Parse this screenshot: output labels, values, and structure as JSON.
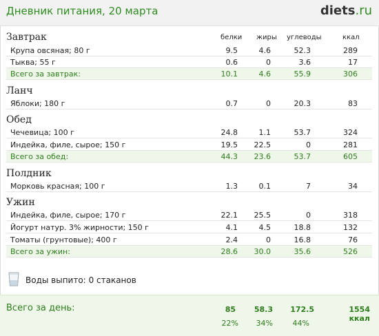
{
  "header": {
    "title": "Дневник питания, 20 марта",
    "logo_main": "diets",
    "logo_tld": ".ru"
  },
  "columns": {
    "protein": "белки",
    "fat": "жиры",
    "carbs": "углеводы",
    "kcal": "ккал"
  },
  "meals": {
    "breakfast": {
      "title": "Завтрак",
      "items": [
        {
          "name": "Крупа овсяная; 80 г",
          "protein": "9.5",
          "fat": "4.6",
          "carbs": "52.3",
          "kcal": "289"
        },
        {
          "name": "Тыква; 55 г",
          "protein": "0.6",
          "fat": "0",
          "carbs": "3.6",
          "kcal": "17"
        }
      ],
      "total": {
        "name": "Всего за завтрак:",
        "protein": "10.1",
        "fat": "4.6",
        "carbs": "55.9",
        "kcal": "306"
      }
    },
    "lunch": {
      "title": "Ланч",
      "items": [
        {
          "name": "Яблоки; 180 г",
          "protein": "0.7",
          "fat": "0",
          "carbs": "20.3",
          "kcal": "83"
        }
      ]
    },
    "dinner": {
      "title": "Обед",
      "items": [
        {
          "name": "Чечевица; 100 г",
          "protein": "24.8",
          "fat": "1.1",
          "carbs": "53.7",
          "kcal": "324"
        },
        {
          "name": "Индейка, филе, сырое; 150 г",
          "protein": "19.5",
          "fat": "22.5",
          "carbs": "0",
          "kcal": "281"
        }
      ],
      "total": {
        "name": "Всего за обед:",
        "protein": "44.3",
        "fat": "23.6",
        "carbs": "53.7",
        "kcal": "605"
      }
    },
    "snack": {
      "title": "Полдник",
      "items": [
        {
          "name": "Морковь красная; 100 г",
          "protein": "1.3",
          "fat": "0.1",
          "carbs": "7",
          "kcal": "34"
        }
      ]
    },
    "supper": {
      "title": "Ужин",
      "items": [
        {
          "name": "Индейка, филе, сырое; 170 г",
          "protein": "22.1",
          "fat": "25.5",
          "carbs": "0",
          "kcal": "318"
        },
        {
          "name": "Йогурт натур. 3% жирности; 150 г",
          "protein": "4.1",
          "fat": "4.5",
          "carbs": "18.8",
          "kcal": "132"
        },
        {
          "name": "Томаты (грунтовые); 400 г",
          "protein": "2.4",
          "fat": "0",
          "carbs": "16.8",
          "kcal": "76"
        }
      ],
      "total": {
        "name": "Всего за ужин:",
        "protein": "28.6",
        "fat": "30.0",
        "carbs": "35.6",
        "kcal": "526"
      }
    }
  },
  "water": {
    "label": "Воды выпито:",
    "value": "0 стаканов",
    "icon": "glass-icon"
  },
  "day_total": {
    "label": "Всего за день:",
    "protein": "85",
    "fat": "58.3",
    "carbs": "172.5",
    "kcal": "1554 ккал",
    "protein_pct": "22%",
    "fat_pct": "34%",
    "carbs_pct": "44%"
  },
  "colors": {
    "accent_green": "#2e8b1f",
    "total_row_bg": "#eef7e9",
    "header_bg": "#f2f2f2"
  }
}
